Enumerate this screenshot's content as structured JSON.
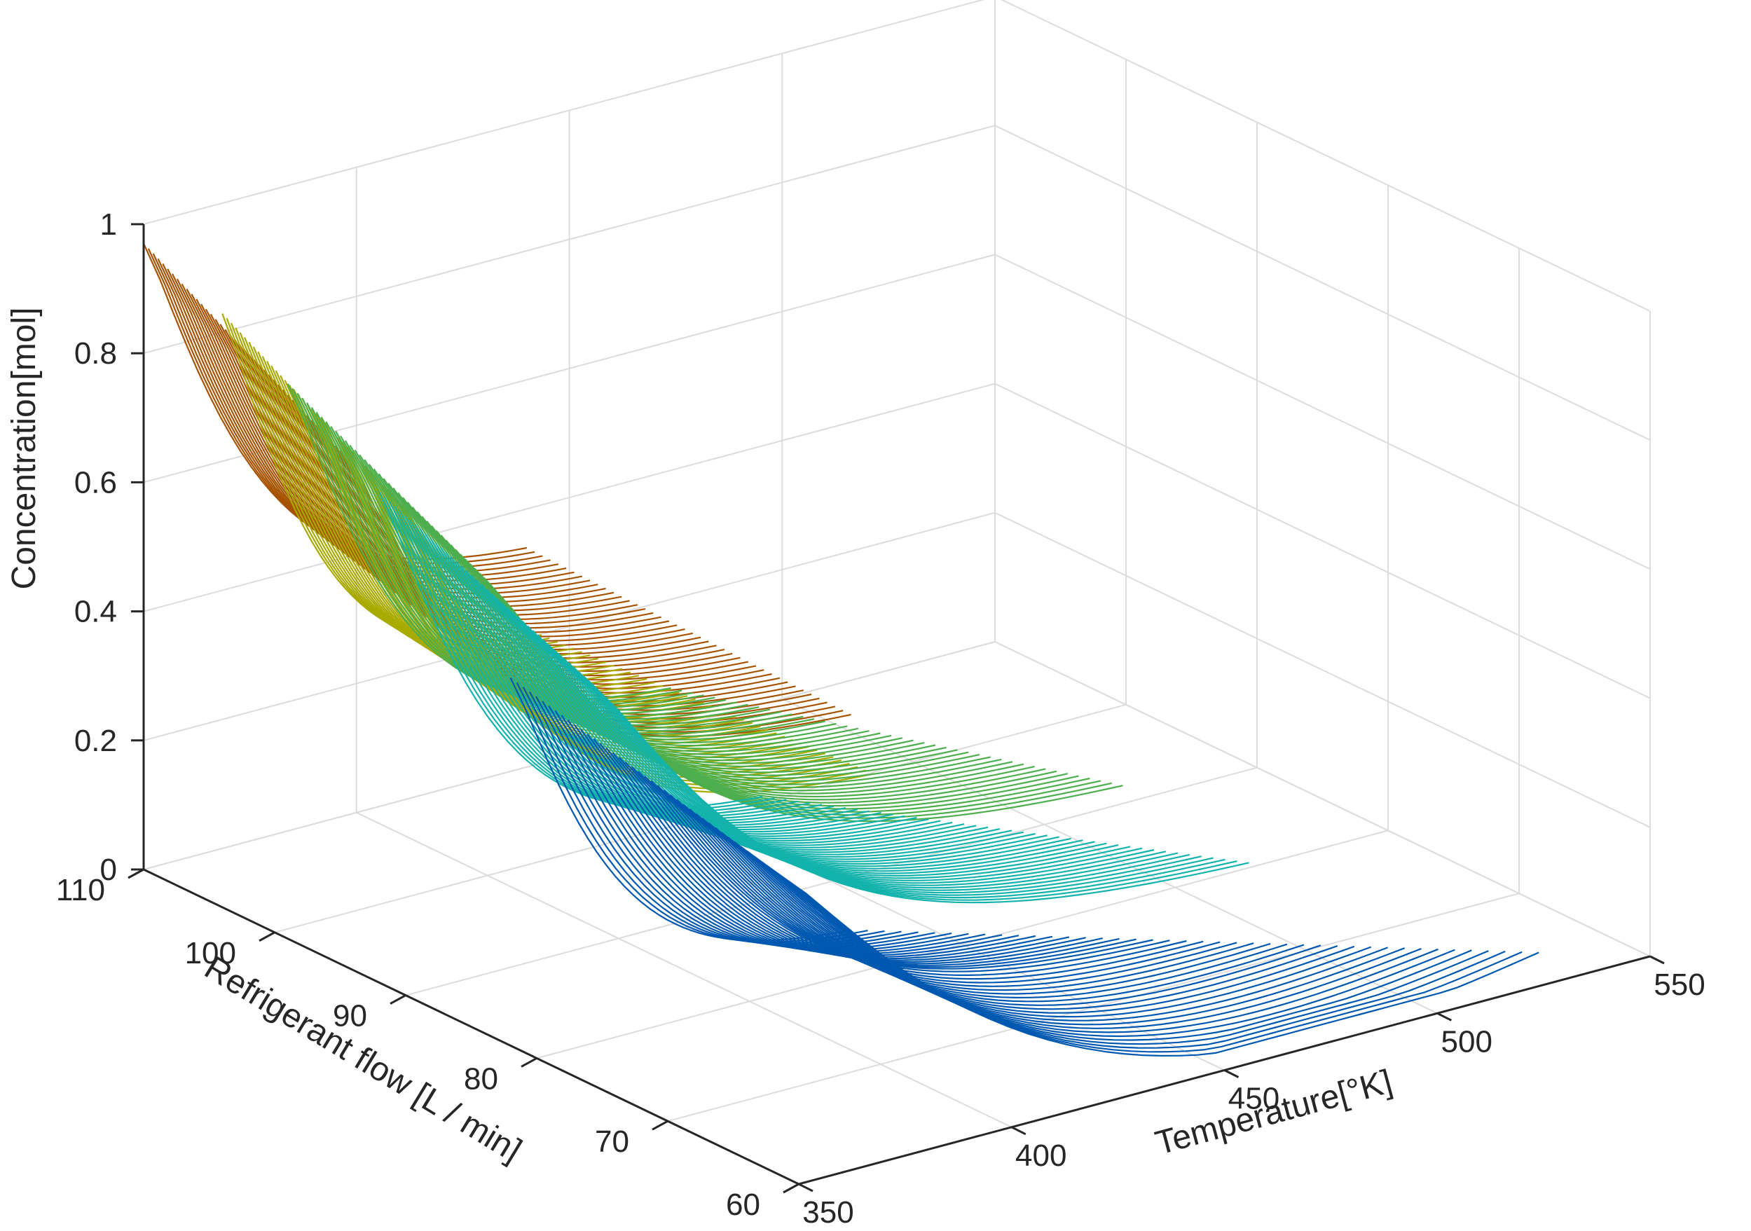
{
  "chart_data": {
    "type": "line",
    "subtype": "3d-line-family",
    "title": "",
    "xlabel": "Temperature[°K]",
    "ylabel": "Refrigerant flow [L / min]",
    "zlabel": "Concentration[mol]",
    "xlim": [
      350,
      550
    ],
    "ylim": [
      60,
      110
    ],
    "zlim": [
      0,
      1
    ],
    "x_ticks": [
      "350",
      "400",
      "450",
      "500",
      "550"
    ],
    "y_ticks": [
      "60",
      "70",
      "80",
      "90",
      "100",
      "110"
    ],
    "z_ticks": [
      "0",
      "0.2",
      "0.4",
      "0.6",
      "0.8",
      "1"
    ],
    "grid": true,
    "series": [
      {
        "color": "#A65300",
        "start_concentration": 0.97,
        "start_temperature": 350,
        "flow_range": [
          95,
          110
        ],
        "final_temperature_range": [
          440,
          470
        ],
        "final_concentration": 0.33
      },
      {
        "color": "#A8AA00",
        "start_concentration": 0.92,
        "start_temperature": 350,
        "flow_range": [
          90,
          104
        ],
        "final_temperature_range": [
          425,
          460
        ],
        "final_concentration": 0.28
      },
      {
        "color": "#4CAE4C",
        "start_concentration": 0.86,
        "start_temperature": 350,
        "flow_range": [
          84,
          99
        ],
        "final_temperature_range": [
          440,
          500
        ],
        "final_concentration": 0.22
      },
      {
        "color": "#13B3AC",
        "start_concentration": 0.76,
        "start_temperature": 350,
        "flow_range": [
          76,
          92
        ],
        "final_temperature_range": [
          440,
          505
        ],
        "final_concentration": 0.12
      },
      {
        "color": "#0058B0",
        "start_concentration": 0.57,
        "start_temperature": 350,
        "flow_range": [
          62,
          82
        ],
        "final_temperature_range": [
          430,
          530
        ],
        "final_concentration": 0.03
      }
    ]
  }
}
